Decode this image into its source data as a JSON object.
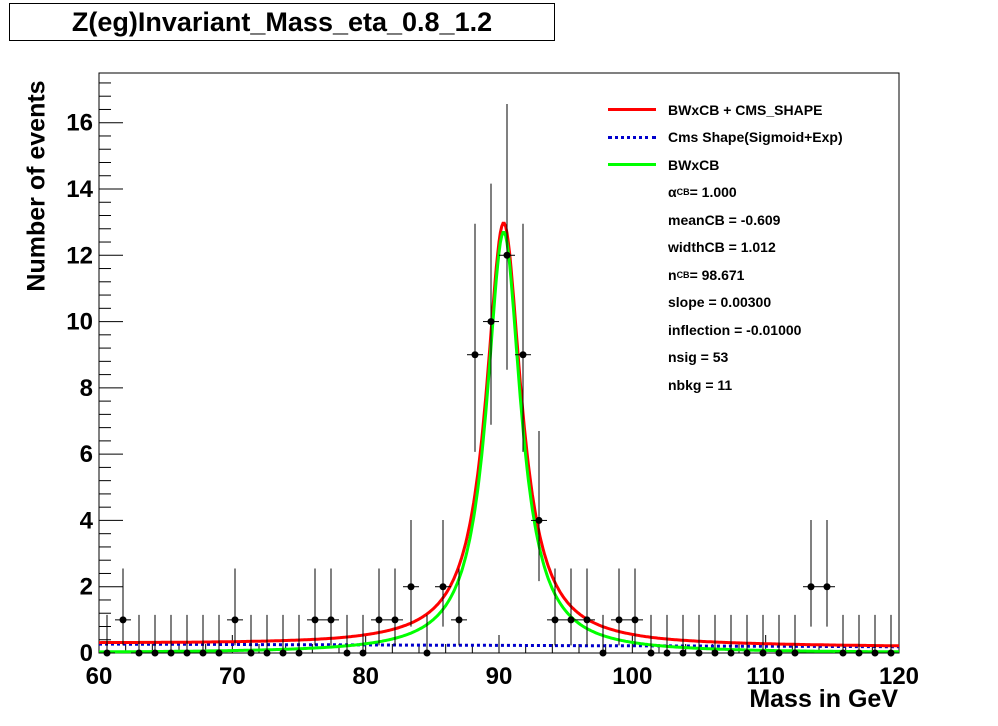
{
  "chart_data": {
    "type": "scatter",
    "title": "Z(eg)Invariant_Mass_eta_0.8_1.2",
    "xlabel": "Mass in GeV",
    "ylabel": "Number of events",
    "xlim": [
      60,
      120
    ],
    "ylim": [
      0,
      17.5
    ],
    "x_ticks": [
      60,
      70,
      80,
      90,
      100,
      110,
      120
    ],
    "y_ticks": [
      0,
      2,
      4,
      6,
      8,
      10,
      12,
      14,
      16
    ],
    "grid": false,
    "legend_position": "top-right",
    "bin_width": 1.2,
    "data_points": {
      "x": [
        60.6,
        61.8,
        63.0,
        64.2,
        65.4,
        66.6,
        67.8,
        69.0,
        70.2,
        71.4,
        72.6,
        73.8,
        75.0,
        76.2,
        77.4,
        78.6,
        79.8,
        81.0,
        82.2,
        83.4,
        84.6,
        85.8,
        87.0,
        88.2,
        89.4,
        90.6,
        91.8,
        93.0,
        94.2,
        95.4,
        96.6,
        97.8,
        99.0,
        100.2,
        101.4,
        102.6,
        103.8,
        105.0,
        106.2,
        107.4,
        108.6,
        109.8,
        111.0,
        112.2,
        113.4,
        114.6,
        115.8,
        117.0,
        118.2,
        119.4
      ],
      "y": [
        0,
        1,
        0,
        0,
        0,
        0,
        0,
        0,
        1,
        0,
        0,
        0,
        0,
        1,
        1,
        0,
        0,
        1,
        1,
        2,
        0,
        2,
        1,
        9,
        10,
        12,
        9,
        4,
        1,
        1,
        1,
        0,
        1,
        1,
        0,
        0,
        0,
        0,
        0,
        0,
        0,
        0,
        0,
        0,
        2,
        2,
        0,
        0,
        0,
        0
      ]
    },
    "series": [
      {
        "name": "BWxCB + CMS_SHAPE",
        "color": "#ff0000",
        "style": "solid"
      },
      {
        "name": "Cms Shape(Sigmoid+Exp)",
        "color": "#0000cc",
        "style": "dotted"
      },
      {
        "name": "BWxCB",
        "color": "#00ff00",
        "style": "solid"
      }
    ],
    "fit_params": {
      "alpha_label": "α",
      "alpha_sub": "CB",
      "alpha_value": " = 1.000",
      "mean": "meanCB = -0.609",
      "width": "widthCB = 1.012",
      "n_label": "n",
      "n_sub": "CB",
      "n_value": " = 98.671",
      "slope": "slope = 0.00300",
      "inflection": "inflection = -0.01000",
      "nsig": "nsig = 53",
      "nbkg": "nbkg = 11"
    }
  }
}
